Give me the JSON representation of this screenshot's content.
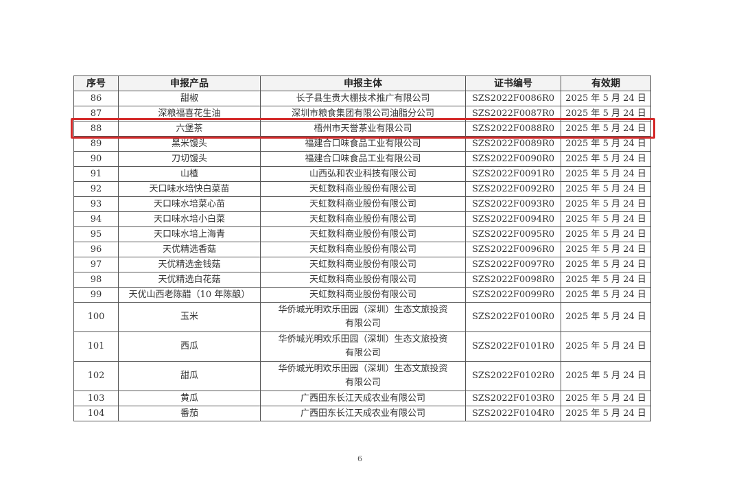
{
  "table": {
    "headers": [
      "序号",
      "申报产品",
      "申报主体",
      "证书编号",
      "有效期"
    ],
    "rows": [
      [
        "86",
        "甜椒",
        "长子县生贵大棚技术推广有限公司",
        "SZS2022F0086R0",
        "2025 年 5 月 24 日"
      ],
      [
        "87",
        "深粮福喜花生油",
        "深圳市粮食集团有限公司油脂分公司",
        "SZS2022F0087R0",
        "2025 年 5 月 24 日"
      ],
      [
        "88",
        "六堡茶",
        "梧州市天誉茶业有限公司",
        "SZS2022F0088R0",
        "2025 年 5 月 24 日"
      ],
      [
        "89",
        "黑米馒头",
        "福建合口味食品工业有限公司",
        "SZS2022F0089R0",
        "2025 年 5 月 24 日"
      ],
      [
        "90",
        "刀切馒头",
        "福建合口味食品工业有限公司",
        "SZS2022F0090R0",
        "2025 年 5 月 24 日"
      ],
      [
        "91",
        "山楂",
        "山西弘和农业科技有限公司",
        "SZS2022F0091R0",
        "2025 年 5 月 24 日"
      ],
      [
        "92",
        "天口味水培快白菜苗",
        "天虹数科商业股份有限公司",
        "SZS2022F0092R0",
        "2025 年 5 月 24 日"
      ],
      [
        "93",
        "天口味水培菜心苗",
        "天虹数科商业股份有限公司",
        "SZS2022F0093R0",
        "2025 年 5 月 24 日"
      ],
      [
        "94",
        "天口味水培小白菜",
        "天虹数科商业股份有限公司",
        "SZS2022F0094R0",
        "2025 年 5 月 24 日"
      ],
      [
        "95",
        "天口味水培上海青",
        "天虹数科商业股份有限公司",
        "SZS2022F0095R0",
        "2025 年 5 月 24 日"
      ],
      [
        "96",
        "天优精选香菇",
        "天虹数科商业股份有限公司",
        "SZS2022F0096R0",
        "2025 年 5 月 24 日"
      ],
      [
        "97",
        "天优精选金钱菇",
        "天虹数科商业股份有限公司",
        "SZS2022F0097R0",
        "2025 年 5 月 24 日"
      ],
      [
        "98",
        "天优精选白花菇",
        "天虹数科商业股份有限公司",
        "SZS2022F0098R0",
        "2025 年 5 月 24 日"
      ],
      [
        "99",
        "天优山西老陈醋（10 年陈酿）",
        "天虹数科商业股份有限公司",
        "SZS2022F0099R0",
        "2025 年 5 月 24 日"
      ],
      [
        "100",
        "玉米",
        "华侨城光明欢乐田园（深圳）生态文旅投资有限公司",
        "SZS2022F0100R0",
        "2025 年 5 月 24 日"
      ],
      [
        "101",
        "西瓜",
        "华侨城光明欢乐田园（深圳）生态文旅投资有限公司",
        "SZS2022F0101R0",
        "2025 年 5 月 24 日"
      ],
      [
        "102",
        "甜瓜",
        "华侨城光明欢乐田园（深圳）生态文旅投资有限公司",
        "SZS2022F0102R0",
        "2025 年 5 月 24 日"
      ],
      [
        "103",
        "黄瓜",
        "广西田东长江天成农业有限公司",
        "SZS2022F0103R0",
        "2025 年 5 月 24 日"
      ],
      [
        "104",
        "番茄",
        "广西田东长江天成农业有限公司",
        "SZS2022F0104R0",
        "2025 年 5 月 24 日"
      ]
    ]
  },
  "highlight": {
    "row": "88",
    "color": "#d42a2a"
  },
  "page_number": "6"
}
